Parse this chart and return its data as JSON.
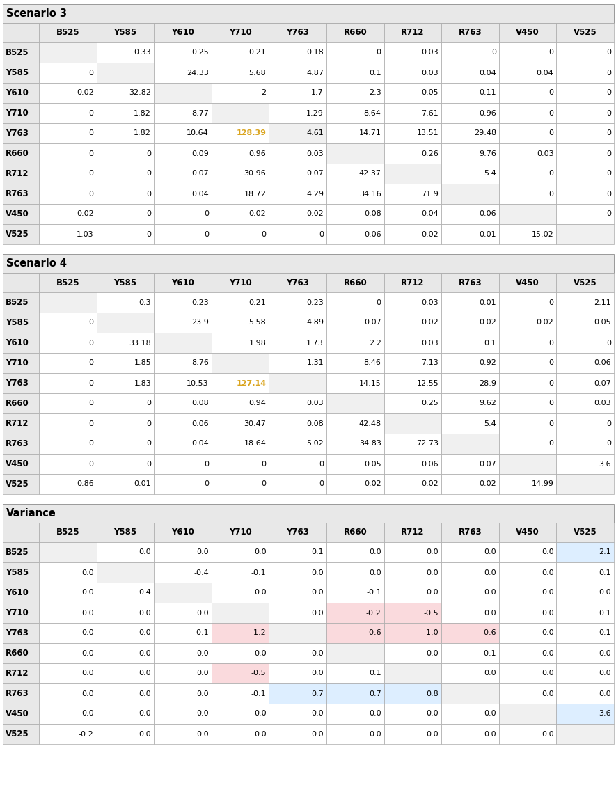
{
  "rows": [
    "B525",
    "Y585",
    "Y610",
    "Y710",
    "Y763",
    "R660",
    "R712",
    "R763",
    "V450",
    "V525"
  ],
  "cols": [
    "B525",
    "Y585",
    "Y610",
    "Y710",
    "Y763",
    "R660",
    "R712",
    "R763",
    "V450",
    "V525"
  ],
  "s3": [
    [
      "",
      "0.33",
      "0.25",
      "0.21",
      "0.18",
      "0",
      "0.03",
      "0",
      "0",
      "0"
    ],
    [
      "0",
      "",
      "24.33",
      "5.68",
      "4.87",
      "0.1",
      "0.03",
      "0.04",
      "0.04",
      "0"
    ],
    [
      "0.02",
      "32.82",
      "",
      "2",
      "1.7",
      "2.3",
      "0.05",
      "0.11",
      "0",
      "0"
    ],
    [
      "0",
      "1.82",
      "8.77",
      "",
      "1.29",
      "8.64",
      "7.61",
      "0.96",
      "0",
      "0"
    ],
    [
      "0",
      "1.82",
      "10.64",
      "128.39",
      "4.61",
      "14.71",
      "13.51",
      "29.48",
      "0",
      "0"
    ],
    [
      "0",
      "0",
      "0.09",
      "0.96",
      "0.03",
      "",
      "0.26",
      "9.76",
      "0.03",
      "0"
    ],
    [
      "0",
      "0",
      "0.07",
      "30.96",
      "0.07",
      "42.37",
      "",
      "5.4",
      "0",
      "0"
    ],
    [
      "0",
      "0",
      "0.04",
      "18.72",
      "4.29",
      "34.16",
      "71.9",
      "",
      "0",
      "0"
    ],
    [
      "0.02",
      "0",
      "0",
      "0.02",
      "0.02",
      "0.08",
      "0.04",
      "0.06",
      "",
      "0"
    ],
    [
      "1.03",
      "0",
      "0",
      "0",
      "0",
      "0.06",
      "0.02",
      "0.01",
      "15.02",
      ""
    ]
  ],
  "s3_highlight": [
    [
      4,
      3
    ]
  ],
  "s3_highlight_color": "#DAA520",
  "s4": [
    [
      "",
      "0.3",
      "0.23",
      "0.21",
      "0.23",
      "0",
      "0.03",
      "0.01",
      "0",
      "2.11"
    ],
    [
      "0",
      "",
      "23.9",
      "5.58",
      "4.89",
      "0.07",
      "0.02",
      "0.02",
      "0.02",
      "0.05"
    ],
    [
      "0",
      "33.18",
      "",
      "1.98",
      "1.73",
      "2.2",
      "0.03",
      "0.1",
      "0",
      "0"
    ],
    [
      "0",
      "1.85",
      "8.76",
      "",
      "1.31",
      "8.46",
      "7.13",
      "0.92",
      "0",
      "0.06"
    ],
    [
      "0",
      "1.83",
      "10.53",
      "127.14",
      "",
      "14.15",
      "12.55",
      "28.9",
      "0",
      "0.07"
    ],
    [
      "0",
      "0",
      "0.08",
      "0.94",
      "0.03",
      "",
      "0.25",
      "9.62",
      "0",
      "0.03"
    ],
    [
      "0",
      "0",
      "0.06",
      "30.47",
      "0.08",
      "42.48",
      "",
      "5.4",
      "0",
      "0"
    ],
    [
      "0",
      "0",
      "0.04",
      "18.64",
      "5.02",
      "34.83",
      "72.73",
      "",
      "0",
      "0"
    ],
    [
      "0",
      "0",
      "0",
      "0",
      "0",
      "0.05",
      "0.06",
      "0.07",
      "",
      "3.6"
    ],
    [
      "0.86",
      "0.01",
      "0",
      "0",
      "0",
      "0.02",
      "0.02",
      "0.02",
      "14.99",
      ""
    ]
  ],
  "s4_highlight": [
    [
      4,
      3
    ]
  ],
  "s4_highlight_color": "#DAA520",
  "var": [
    [
      "",
      "0.0",
      "0.0",
      "0.0",
      "0.1",
      "0.0",
      "0.0",
      "0.0",
      "0.0",
      "2.1"
    ],
    [
      "0.0",
      "",
      "-0.4",
      "-0.1",
      "0.0",
      "0.0",
      "0.0",
      "0.0",
      "0.0",
      "0.1"
    ],
    [
      "0.0",
      "0.4",
      "",
      "0.0",
      "0.0",
      "-0.1",
      "0.0",
      "0.0",
      "0.0",
      "0.0"
    ],
    [
      "0.0",
      "0.0",
      "0.0",
      "",
      "0.0",
      "-0.2",
      "-0.5",
      "0.0",
      "0.0",
      "0.1"
    ],
    [
      "0.0",
      "0.0",
      "-0.1",
      "-1.2",
      "",
      "-0.6",
      "-1.0",
      "-0.6",
      "0.0",
      "0.1"
    ],
    [
      "0.0",
      "0.0",
      "0.0",
      "0.0",
      "0.0",
      "",
      "0.0",
      "-0.1",
      "0.0",
      "0.0"
    ],
    [
      "0.0",
      "0.0",
      "0.0",
      "-0.5",
      "0.0",
      "0.1",
      "",
      "0.0",
      "0.0",
      "0.0"
    ],
    [
      "0.0",
      "0.0",
      "0.0",
      "-0.1",
      "0.7",
      "0.7",
      "0.8",
      "",
      "0.0",
      "0.0"
    ],
    [
      "0.0",
      "0.0",
      "0.0",
      "0.0",
      "0.0",
      "0.0",
      "0.0",
      "0.0",
      "",
      "3.6"
    ],
    [
      "-0.2",
      "0.0",
      "0.0",
      "0.0",
      "0.0",
      "0.0",
      "0.0",
      "0.0",
      "0.0",
      ""
    ]
  ],
  "var_colors": [
    [
      "",
      "",
      "",
      "",
      "",
      "",
      "",
      "",
      "",
      "#DDEEFF"
    ],
    [
      "",
      "",
      "",
      "",
      "",
      "",
      "",
      "",
      "",
      ""
    ],
    [
      "",
      "",
      "",
      "",
      "",
      "",
      "",
      "",
      "",
      ""
    ],
    [
      "",
      "",
      "",
      "",
      "",
      "#FADADD",
      "#FADADD",
      "",
      "",
      ""
    ],
    [
      "",
      "",
      "",
      "#FADADD",
      "",
      "#FADADD",
      "#FADADD",
      "#FADADD",
      "",
      ""
    ],
    [
      "",
      "",
      "",
      "",
      "",
      "",
      "",
      "",
      "",
      ""
    ],
    [
      "",
      "",
      "",
      "#FADADD",
      "",
      "",
      "",
      "",
      "",
      ""
    ],
    [
      "",
      "",
      "",
      "",
      "#DDEEFF",
      "#DDEEFF",
      "#DDEEFF",
      "",
      "",
      ""
    ],
    [
      "",
      "",
      "",
      "",
      "",
      "",
      "",
      "",
      "",
      "#DDEEFF"
    ],
    [
      "",
      "",
      "",
      "",
      "",
      "",
      "",
      "",
      "",
      ""
    ]
  ],
  "bg_header": "#E8E8E8",
  "bg_white": "#FFFFFF",
  "border_color": "#AAAAAA",
  "title_font_size": 10.5,
  "header_font_size": 8.5,
  "cell_font_size": 8.0
}
